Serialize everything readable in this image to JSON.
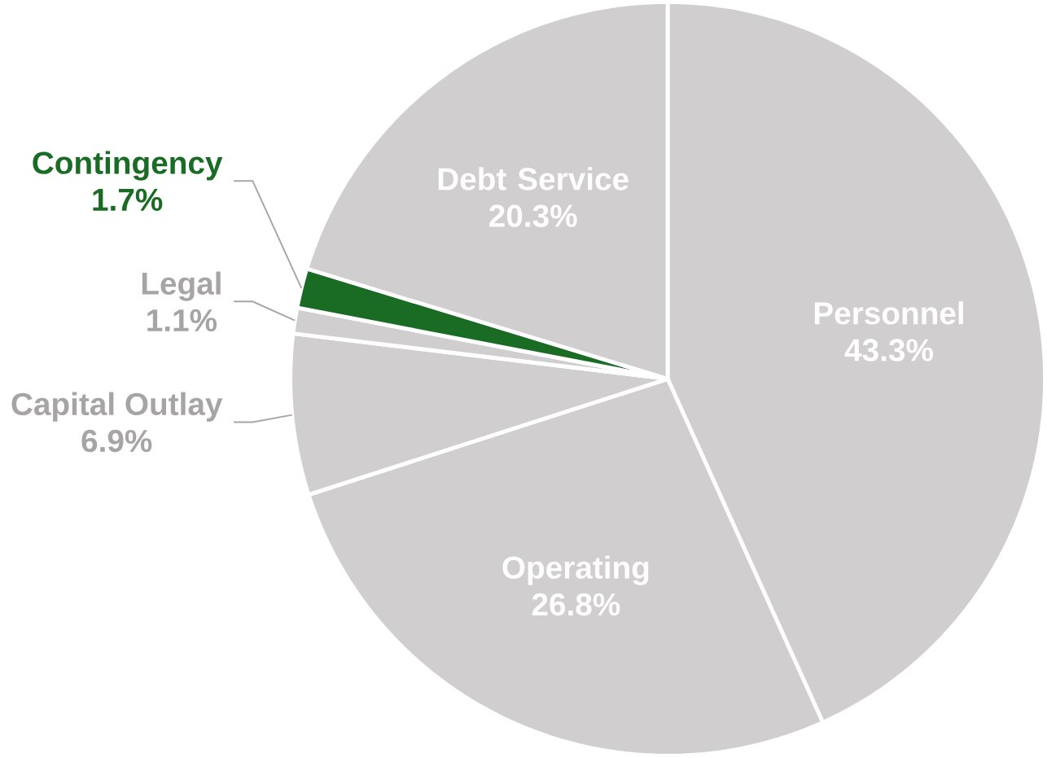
{
  "chart_data": {
    "type": "pie",
    "categories": [
      "Personnel",
      "Operating",
      "Capital Outlay",
      "Legal",
      "Contingency",
      "Debt Service"
    ],
    "values": [
      43.3,
      26.8,
      6.9,
      1.1,
      1.7,
      20.3
    ],
    "value_labels": [
      "43.3%",
      "26.8%",
      "6.9%",
      "1.1%",
      "1.7%",
      "20.3%"
    ],
    "colors": [
      "#d0cecf",
      "#d0cecf",
      "#d0cecf",
      "#d0cecf",
      "#1a6b24",
      "#d0cecf"
    ]
  }
}
